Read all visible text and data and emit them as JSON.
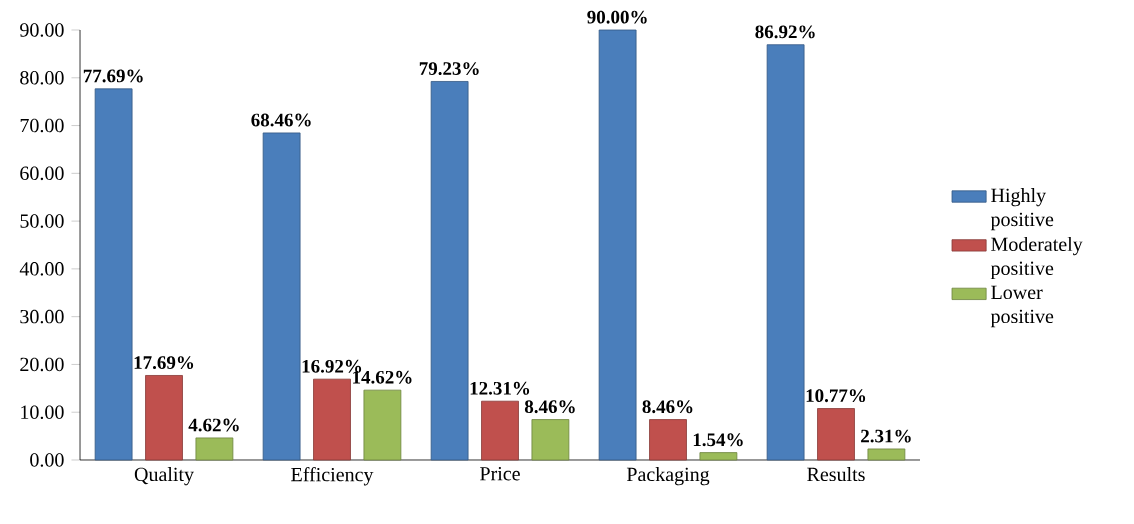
{
  "chart_data": {
    "type": "bar",
    "categories": [
      "Quality",
      "Efficiency",
      "Price",
      "Packaging",
      "Results"
    ],
    "series": [
      {
        "name": "Highly positive",
        "color": "#4a7ebb",
        "values": [
          77.69,
          68.46,
          79.23,
          90.0,
          86.92
        ],
        "value_labels": [
          "77.69%",
          "68.46%",
          "79.23%",
          "90.00%",
          "86.92%"
        ]
      },
      {
        "name": "Moderately positive",
        "color": "#c0504d",
        "values": [
          17.69,
          16.92,
          12.31,
          8.46,
          10.77
        ],
        "value_labels": [
          "17.69%",
          "16.92%",
          "12.31%",
          "8.46%",
          "10.77%"
        ]
      },
      {
        "name": "Lower positive",
        "color": "#9bbb59",
        "values": [
          4.62,
          14.62,
          8.46,
          1.54,
          2.31
        ],
        "value_labels": [
          "4.62%",
          "14.62%",
          "8.46%",
          "1.54%",
          "2.31%"
        ]
      }
    ],
    "ylim": [
      0,
      90
    ],
    "yticks": [
      {
        "value": 0,
        "label": "0.00"
      },
      {
        "value": 10,
        "label": "10.00"
      },
      {
        "value": 20,
        "label": "20.00"
      },
      {
        "value": 30,
        "label": "30.00"
      },
      {
        "value": 40,
        "label": "40.00"
      },
      {
        "value": 50,
        "label": "50.00"
      },
      {
        "value": 60,
        "label": "60.00"
      },
      {
        "value": 70,
        "label": "70.00"
      },
      {
        "value": 80,
        "label": "80.00"
      },
      {
        "value": 90,
        "label": "90.00"
      }
    ],
    "legend": "right"
  }
}
